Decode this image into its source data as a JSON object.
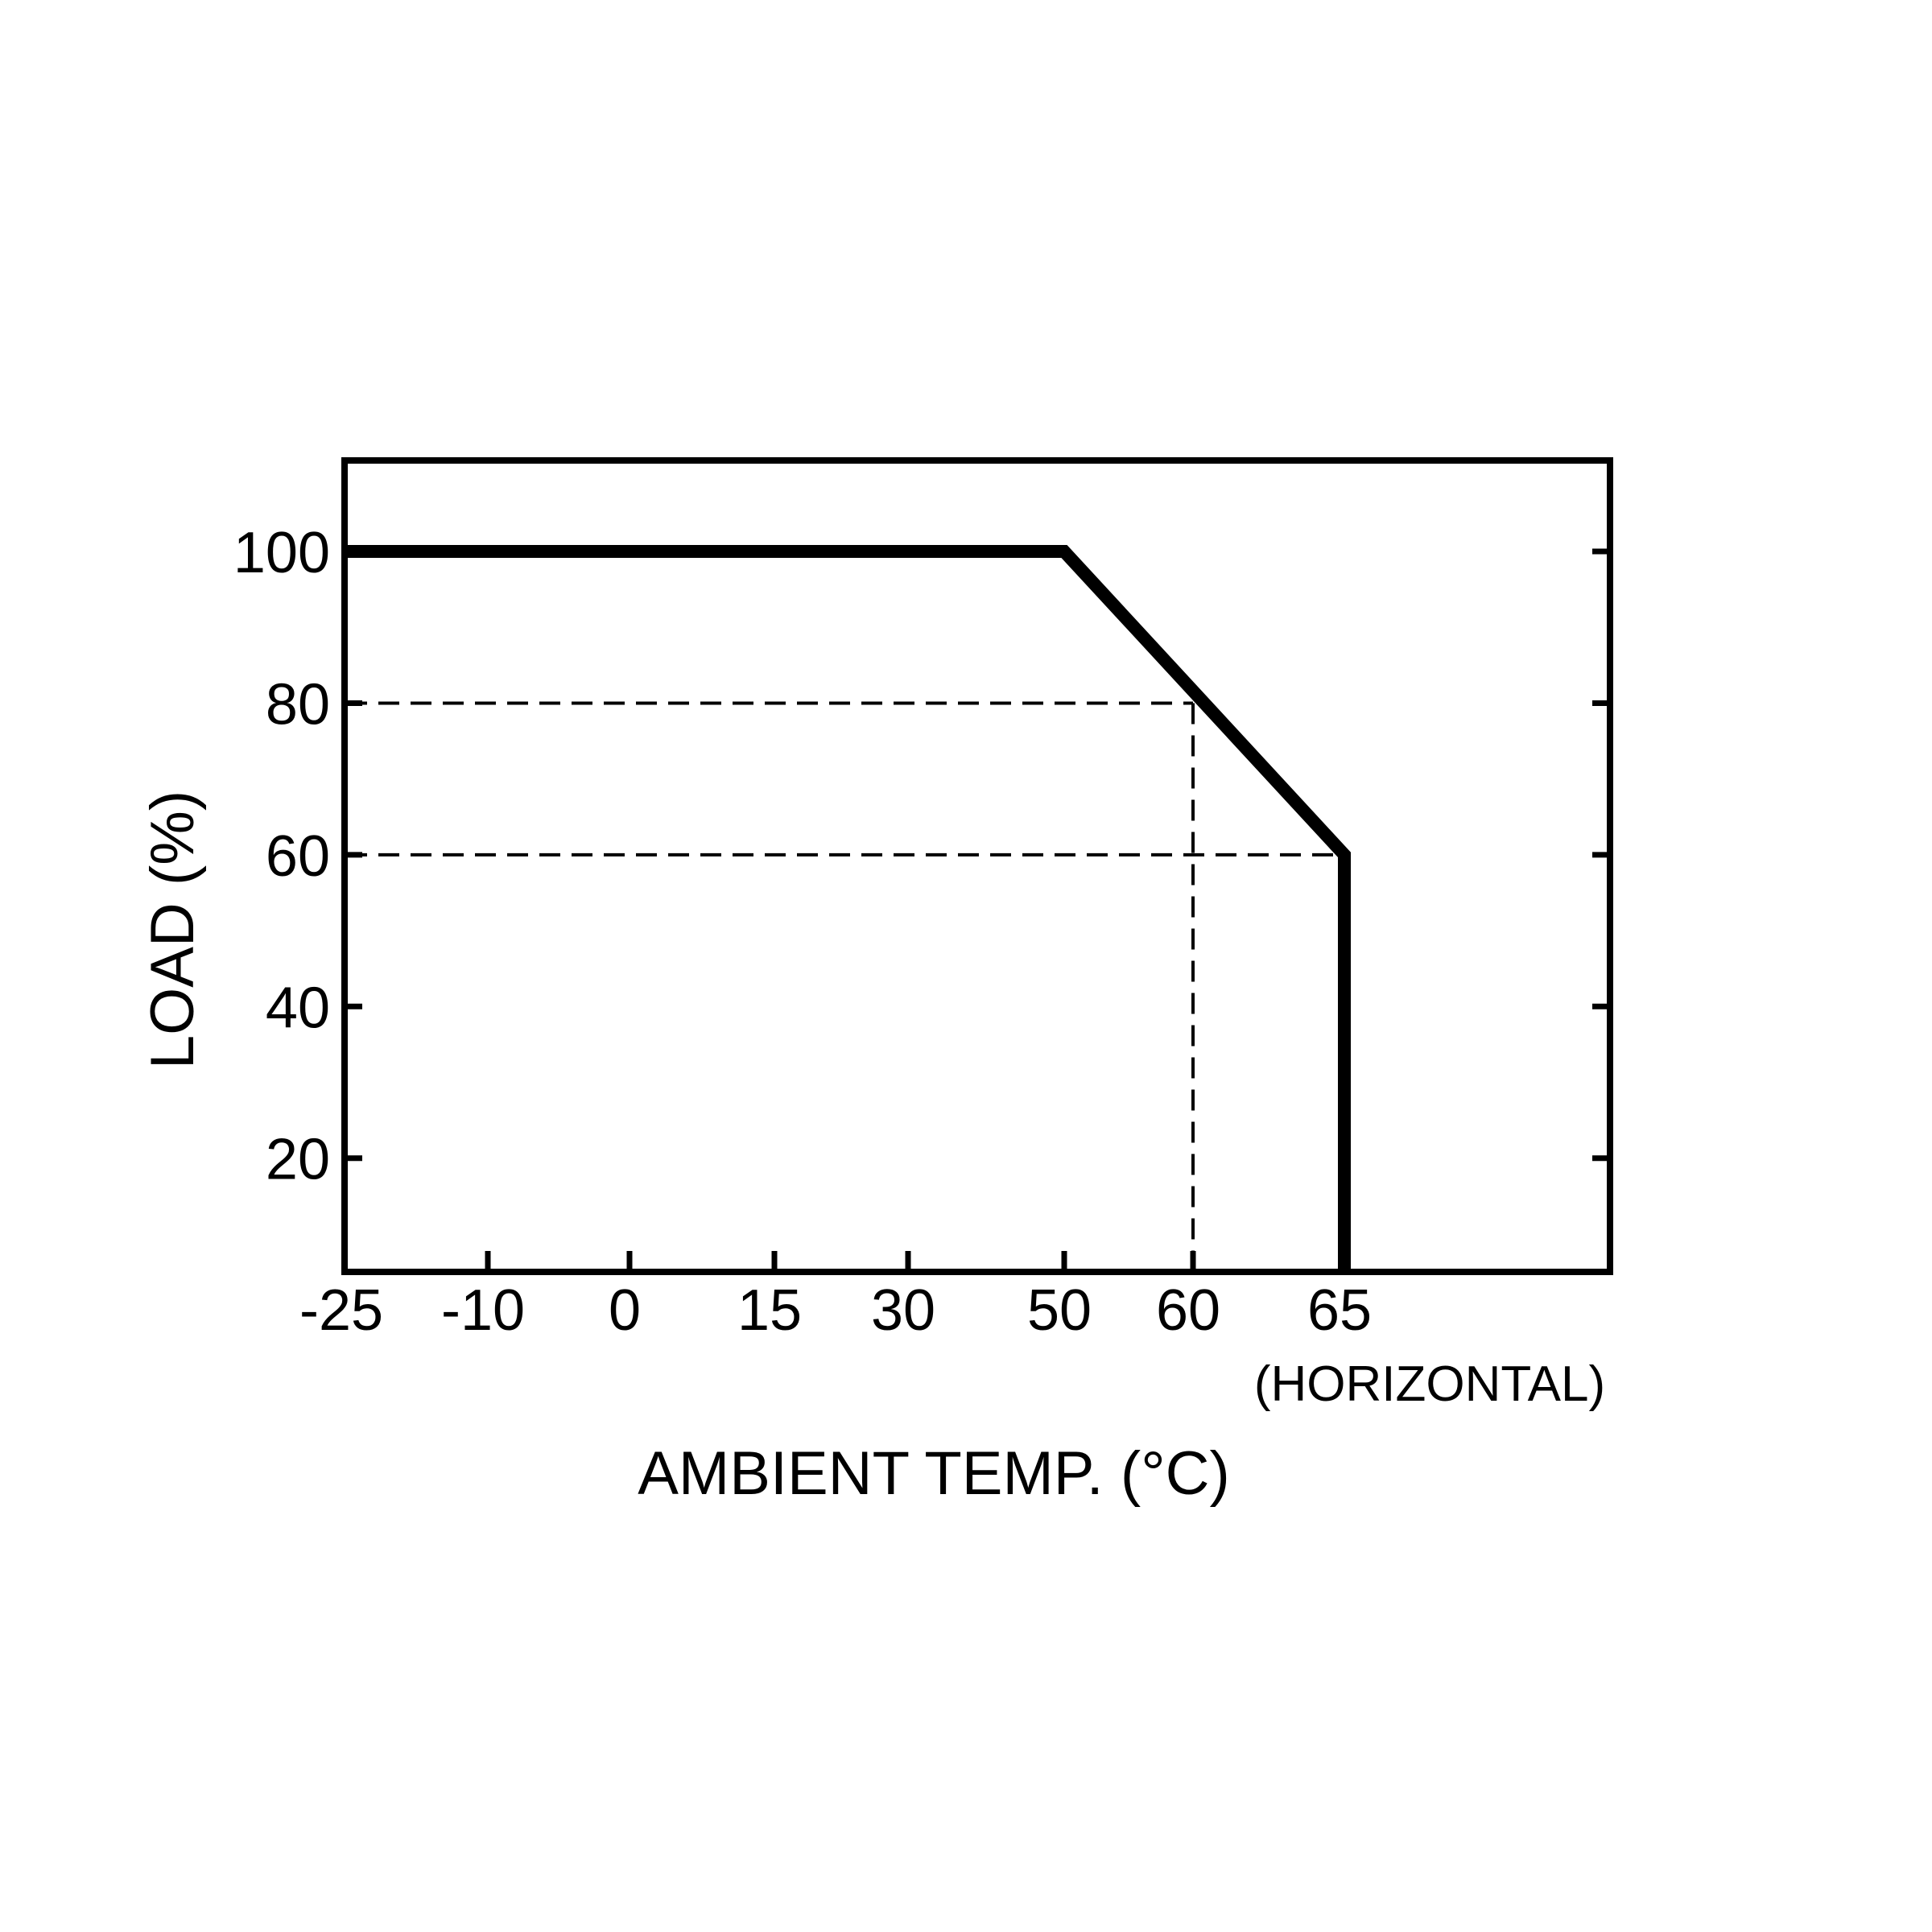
{
  "colors": {
    "background": "#ffffff",
    "ink": "#000000"
  },
  "chart_data": {
    "type": "line",
    "title": "",
    "xlabel": "AMBIENT TEMP. (°C)",
    "ylabel": "LOAD (%)",
    "note": "(HORIZONTAL)",
    "x_ticks": [
      -25,
      -10,
      0,
      15,
      30,
      50,
      60,
      65
    ],
    "x_tick_labels": [
      "-25",
      "-10",
      "0",
      "15",
      "30",
      "50",
      "60",
      "65"
    ],
    "y_ticks": [
      20,
      40,
      60,
      80,
      100
    ],
    "y_tick_labels": [
      "20",
      "40",
      "60",
      "80",
      "100"
    ],
    "ylim": [
      5,
      112
    ],
    "grid": false,
    "legend": "none",
    "series": [
      {
        "x": [
          -25,
          50,
          65,
          65
        ],
        "y": [
          100,
          100,
          60,
          5
        ]
      }
    ],
    "reference_lines": [
      {
        "from": [
          -25,
          80
        ],
        "to": [
          60,
          80
        ]
      },
      {
        "from": [
          -25,
          60
        ],
        "to": [
          65,
          60
        ]
      },
      {
        "from": [
          60,
          80
        ],
        "to": [
          60,
          5
        ]
      }
    ]
  }
}
